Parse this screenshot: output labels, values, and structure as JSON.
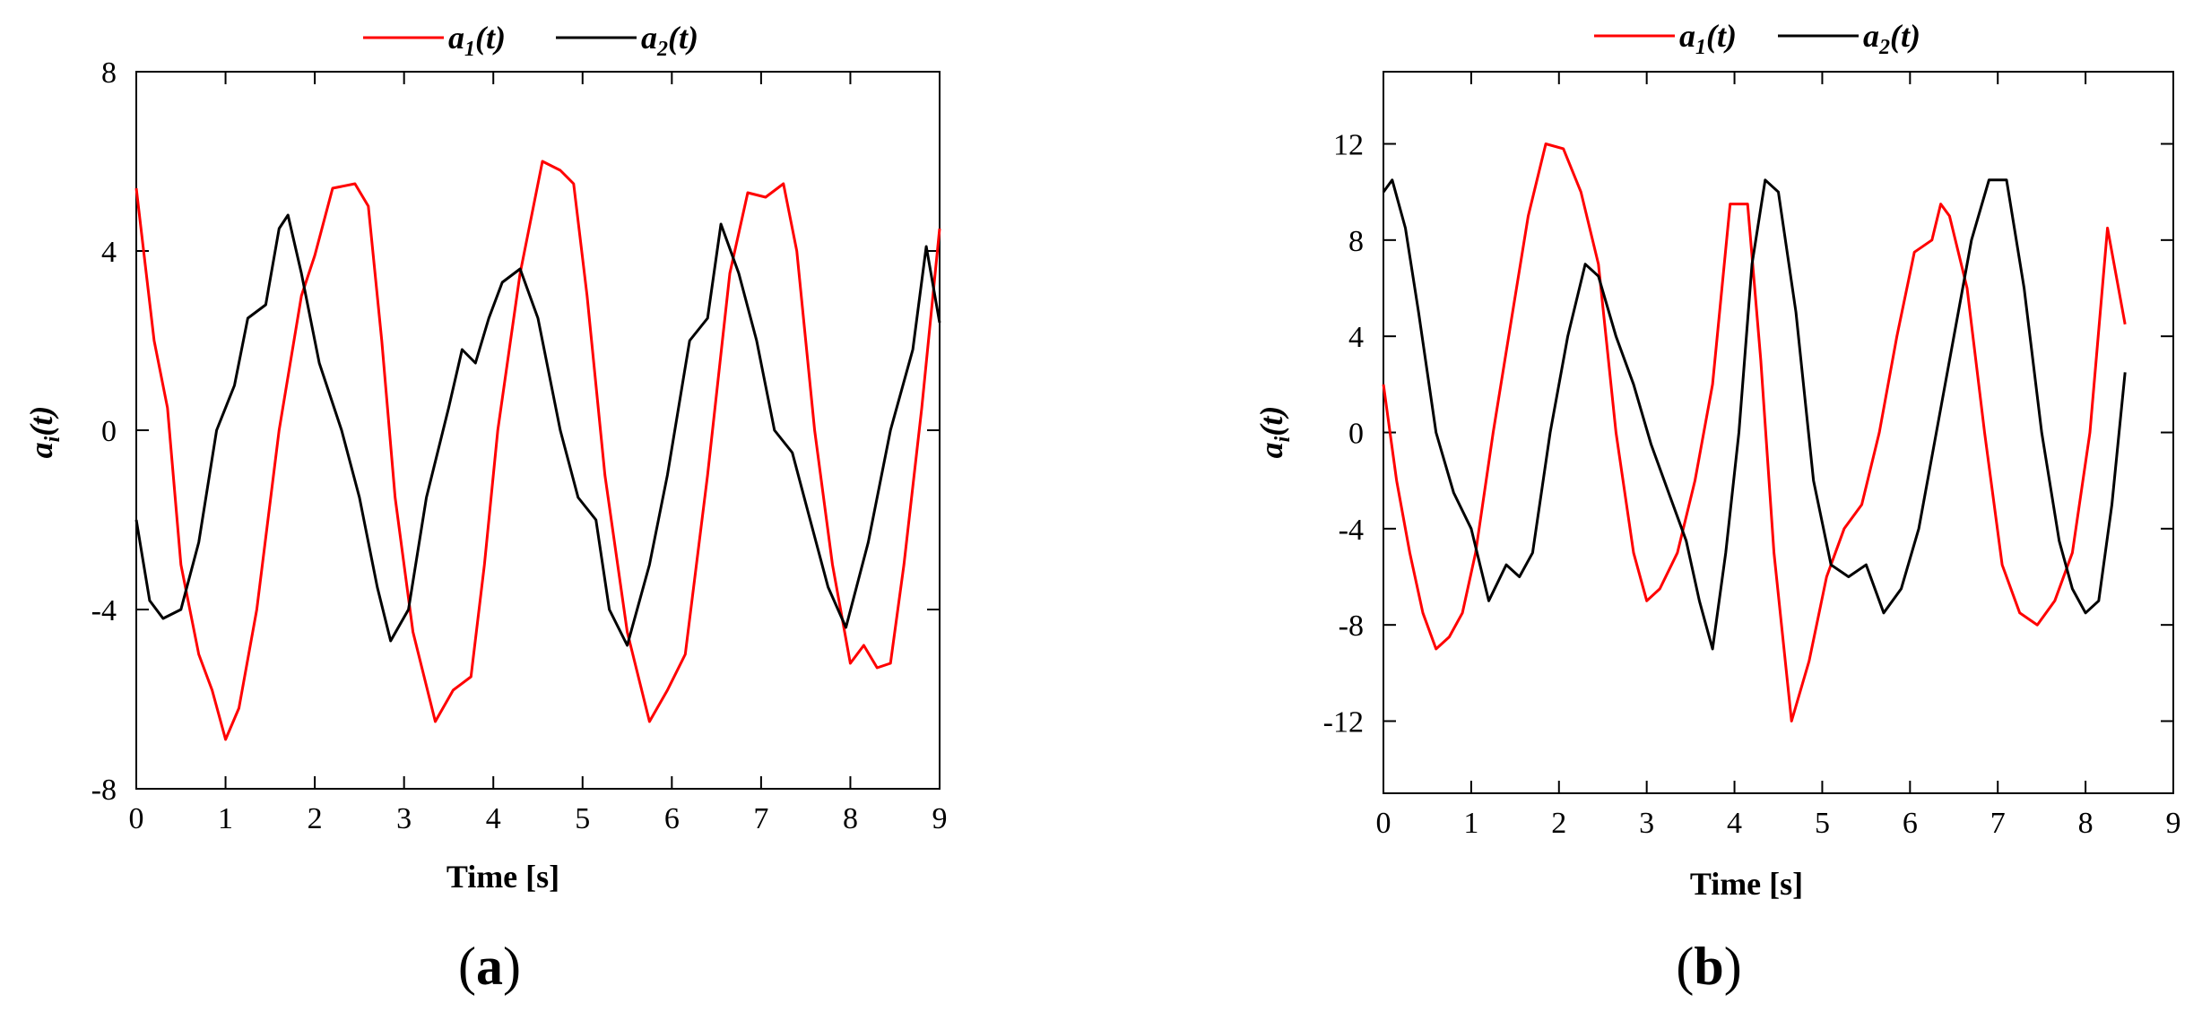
{
  "figure": {
    "panels": [
      {
        "id": "a",
        "panel_label_open": "(",
        "panel_label_letter": "a",
        "panel_label_close": ")",
        "ylabel_main": "a",
        "ylabel_sub": "i",
        "ylabel_rest": "(t)",
        "xlabel": "Time [s]",
        "legend": [
          {
            "main": "a",
            "sub": "1",
            "rest": "(t)",
            "color": "#ff0000"
          },
          {
            "main": "a",
            "sub": "2",
            "rest": "(t)",
            "color": "#000000"
          }
        ]
      },
      {
        "id": "b",
        "panel_label_open": "(",
        "panel_label_letter": "b",
        "panel_label_close": ")",
        "ylabel_main": "a",
        "ylabel_sub": "i",
        "ylabel_rest": "(t)",
        "xlabel": "Time [s]",
        "legend": [
          {
            "main": "a",
            "sub": "1",
            "rest": "(t)",
            "color": "#ff0000"
          },
          {
            "main": "a",
            "sub": "2",
            "rest": "(t)",
            "color": "#000000"
          }
        ]
      }
    ]
  },
  "chart_data": [
    {
      "type": "line",
      "panel": "a",
      "xlabel": "Time [s]",
      "ylabel": "a_i(t)",
      "xlim": [
        0,
        9
      ],
      "ylim": [
        -8,
        8
      ],
      "xticks": [
        0,
        1,
        2,
        3,
        4,
        5,
        6,
        7,
        8,
        9
      ],
      "yticks": [
        -8,
        -4,
        0,
        4,
        8
      ],
      "grid": false,
      "legend_position": "top",
      "series": [
        {
          "name": "a1(t)",
          "color": "#ff0000",
          "x": [
            0,
            0.2,
            0.35,
            0.5,
            0.7,
            0.85,
            1.0,
            1.15,
            1.35,
            1.6,
            1.85,
            2.0,
            2.2,
            2.45,
            2.6,
            2.75,
            2.9,
            3.1,
            3.35,
            3.55,
            3.75,
            3.9,
            4.05,
            4.3,
            4.55,
            4.75,
            4.9,
            5.05,
            5.25,
            5.5,
            5.75,
            5.95,
            6.15,
            6.4,
            6.65,
            6.85,
            7.05,
            7.25,
            7.4,
            7.6,
            7.8,
            8.0,
            8.15,
            8.3,
            8.45,
            8.6,
            8.8,
            9.0
          ],
          "y": [
            5.4,
            2.0,
            0.5,
            -3.0,
            -5.0,
            -5.8,
            -6.9,
            -6.2,
            -4.0,
            0.0,
            3.0,
            3.9,
            5.4,
            5.5,
            5.0,
            2.0,
            -1.5,
            -4.5,
            -6.5,
            -5.8,
            -5.5,
            -3.0,
            0.0,
            3.5,
            6.0,
            5.8,
            5.5,
            3.0,
            -1.0,
            -4.5,
            -6.5,
            -5.8,
            -5.0,
            -1.0,
            3.5,
            5.3,
            5.2,
            5.5,
            4.0,
            0.0,
            -3.0,
            -5.2,
            -4.8,
            -5.3,
            -5.2,
            -3.0,
            0.5,
            4.5
          ]
        },
        {
          "name": "a2(t)",
          "color": "#000000",
          "x": [
            0,
            0.15,
            0.3,
            0.5,
            0.7,
            0.9,
            1.1,
            1.25,
            1.45,
            1.6,
            1.7,
            1.85,
            2.05,
            2.3,
            2.5,
            2.7,
            2.85,
            3.05,
            3.25,
            3.5,
            3.65,
            3.8,
            3.95,
            4.1,
            4.3,
            4.5,
            4.75,
            4.95,
            5.15,
            5.3,
            5.5,
            5.75,
            5.95,
            6.2,
            6.4,
            6.55,
            6.75,
            6.95,
            7.15,
            7.35,
            7.55,
            7.75,
            7.95,
            8.2,
            8.45,
            8.7,
            8.85,
            9.0
          ],
          "y": [
            -2.0,
            -3.8,
            -4.2,
            -4.0,
            -2.5,
            0.0,
            1.0,
            2.5,
            2.8,
            4.5,
            4.8,
            3.5,
            1.5,
            0.0,
            -1.5,
            -3.5,
            -4.7,
            -4.0,
            -1.5,
            0.5,
            1.8,
            1.5,
            2.5,
            3.3,
            3.6,
            2.5,
            0.0,
            -1.5,
            -2.0,
            -4.0,
            -4.8,
            -3.0,
            -1.0,
            2.0,
            2.5,
            4.6,
            3.5,
            2.0,
            0.0,
            -0.5,
            -2.0,
            -3.5,
            -4.4,
            -2.5,
            0.0,
            1.8,
            4.1,
            2.4
          ]
        }
      ]
    },
    {
      "type": "line",
      "panel": "b",
      "xlabel": "Time [s]",
      "ylabel": "a_i(t)",
      "xlim": [
        0,
        9
      ],
      "ylim": [
        -15,
        15
      ],
      "xticks": [
        0,
        1,
        2,
        3,
        4,
        5,
        6,
        7,
        8,
        9
      ],
      "yticks": [
        -12,
        -8,
        -4,
        0,
        4,
        8,
        12
      ],
      "grid": false,
      "legend_position": "top",
      "series": [
        {
          "name": "a1(t)",
          "color": "#ff0000",
          "x": [
            0,
            0.15,
            0.3,
            0.45,
            0.6,
            0.75,
            0.9,
            1.05,
            1.25,
            1.45,
            1.65,
            1.85,
            2.05,
            2.25,
            2.45,
            2.65,
            2.85,
            3.0,
            3.15,
            3.35,
            3.55,
            3.75,
            3.95,
            4.15,
            4.3,
            4.45,
            4.65,
            4.85,
            5.05,
            5.25,
            5.45,
            5.65,
            5.85,
            6.05,
            6.25,
            6.35,
            6.45,
            6.65,
            6.85,
            7.05,
            7.25,
            7.45,
            7.65,
            7.85,
            8.05,
            8.25,
            8.45
          ],
          "y": [
            2.0,
            -2.0,
            -5.0,
            -7.5,
            -9.0,
            -8.5,
            -7.5,
            -5.0,
            0.0,
            4.5,
            9.0,
            12.0,
            11.8,
            10.0,
            7.0,
            0.0,
            -5.0,
            -7.0,
            -6.5,
            -5.0,
            -2.0,
            2.0,
            9.5,
            9.5,
            3.0,
            -5.0,
            -12.0,
            -9.5,
            -6.0,
            -4.0,
            -3.0,
            0.0,
            4.0,
            7.5,
            8.0,
            9.5,
            9.0,
            6.0,
            0.0,
            -5.5,
            -7.5,
            -8.0,
            -7.0,
            -5.0,
            0.0,
            8.5,
            4.5
          ]
        },
        {
          "name": "a2(t)",
          "color": "#000000",
          "x": [
            0,
            0.1,
            0.25,
            0.4,
            0.6,
            0.8,
            1.0,
            1.2,
            1.4,
            1.55,
            1.7,
            1.9,
            2.1,
            2.3,
            2.45,
            2.65,
            2.85,
            3.05,
            3.25,
            3.45,
            3.6,
            3.75,
            3.9,
            4.05,
            4.2,
            4.35,
            4.5,
            4.7,
            4.9,
            5.1,
            5.3,
            5.5,
            5.7,
            5.9,
            6.1,
            6.3,
            6.5,
            6.7,
            6.9,
            7.1,
            7.3,
            7.5,
            7.7,
            7.85,
            8.0,
            8.15,
            8.3,
            8.45
          ],
          "y": [
            10.0,
            10.5,
            8.5,
            5.0,
            0.0,
            -2.5,
            -4.0,
            -7.0,
            -5.5,
            -6.0,
            -5.0,
            0.0,
            4.0,
            7.0,
            6.5,
            4.0,
            2.0,
            -0.5,
            -2.5,
            -4.5,
            -7.0,
            -9.0,
            -5.0,
            0.0,
            7.0,
            10.5,
            10.0,
            5.0,
            -2.0,
            -5.5,
            -6.0,
            -5.5,
            -7.5,
            -6.5,
            -4.0,
            0.0,
            4.0,
            8.0,
            10.5,
            10.5,
            6.0,
            0.0,
            -4.5,
            -6.5,
            -7.5,
            -7.0,
            -3.0,
            2.5
          ]
        }
      ]
    }
  ]
}
